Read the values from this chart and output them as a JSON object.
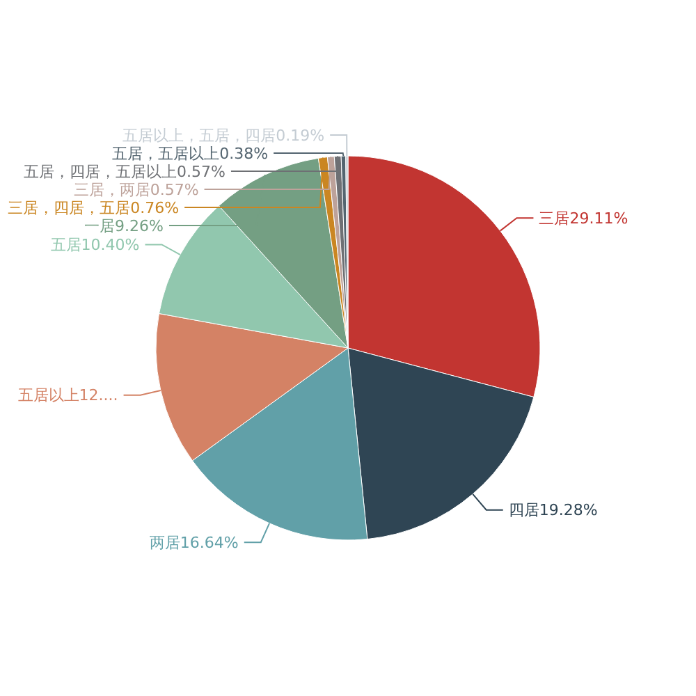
{
  "chart_data": {
    "type": "pie",
    "categories": [
      "三居",
      "四居",
      "两居",
      "五居以上",
      "五居",
      "一居",
      "三居，四居，五居",
      "三居，两居",
      "五居，四居，五居以上",
      "五居，五居以上",
      "五居以上，五居，四居"
    ],
    "values": [
      29.11,
      19.28,
      16.64,
      12.84,
      10.4,
      9.26,
      0.76,
      0.57,
      0.57,
      0.38,
      0.19
    ],
    "value_labels": [
      "29.11%",
      "19.28%",
      "16.64%",
      "12....",
      "10.40%",
      "9.26%",
      "0.76%",
      "0.57%",
      "0.57%",
      "0.38%",
      "0.19%"
    ],
    "colors": [
      "#c23531",
      "#2f4554",
      "#61a0a8",
      "#d48265",
      "#91c7ae",
      "#749f83",
      "#ca8622",
      "#bda29a",
      "#6e7074",
      "#546570",
      "#c4ccd3"
    ]
  }
}
